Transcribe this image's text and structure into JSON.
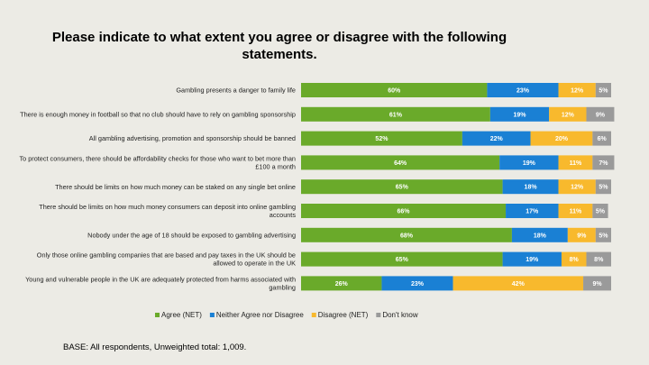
{
  "title": "Please indicate to what extent you agree or disagree with the following statements.",
  "base_note": "BASE: All respondents, Unweighted total: 1,009.",
  "chart_data": {
    "type": "bar",
    "orientation": "horizontal",
    "stacked": true,
    "value_format": "percent",
    "categories": [
      "Gambling presents a danger to family life",
      "There is enough money in football so that no club should have to rely on gambling sponsorship",
      "All gambling advertising, promotion and sponsorship should be banned",
      "To protect consumers, there should be affordability checks for those who want to bet more than £100 a month",
      "There should be limits on how much money can be staked on any single bet online",
      "There should be limits on how much money consumers can deposit into online gambling accounts",
      "Nobody under the age of 18 should be exposed to gambling advertising",
      "Only those online gambling companies that are based and pay taxes in the UK should be allowed to operate in the UK",
      "Young and vulnerable people in the UK are adequately protected from harms associated with gambling"
    ],
    "series": [
      {
        "name": "Agree (NET)",
        "color": "#6aaa2a",
        "values": [
          60,
          61,
          52,
          64,
          65,
          66,
          68,
          65,
          26
        ]
      },
      {
        "name": "Neither Agree nor Disagree",
        "color": "#1a80d4",
        "values": [
          23,
          19,
          22,
          19,
          18,
          17,
          18,
          19,
          23
        ]
      },
      {
        "name": "Disagree (NET)",
        "color": "#f8b92d",
        "values": [
          12,
          12,
          20,
          11,
          12,
          11,
          9,
          8,
          42
        ]
      },
      {
        "name": "Don't know",
        "color": "#9a9a9a",
        "values": [
          5,
          9,
          6,
          7,
          5,
          5,
          5,
          8,
          9
        ]
      }
    ],
    "legend_position": "bottom",
    "grid": false
  }
}
